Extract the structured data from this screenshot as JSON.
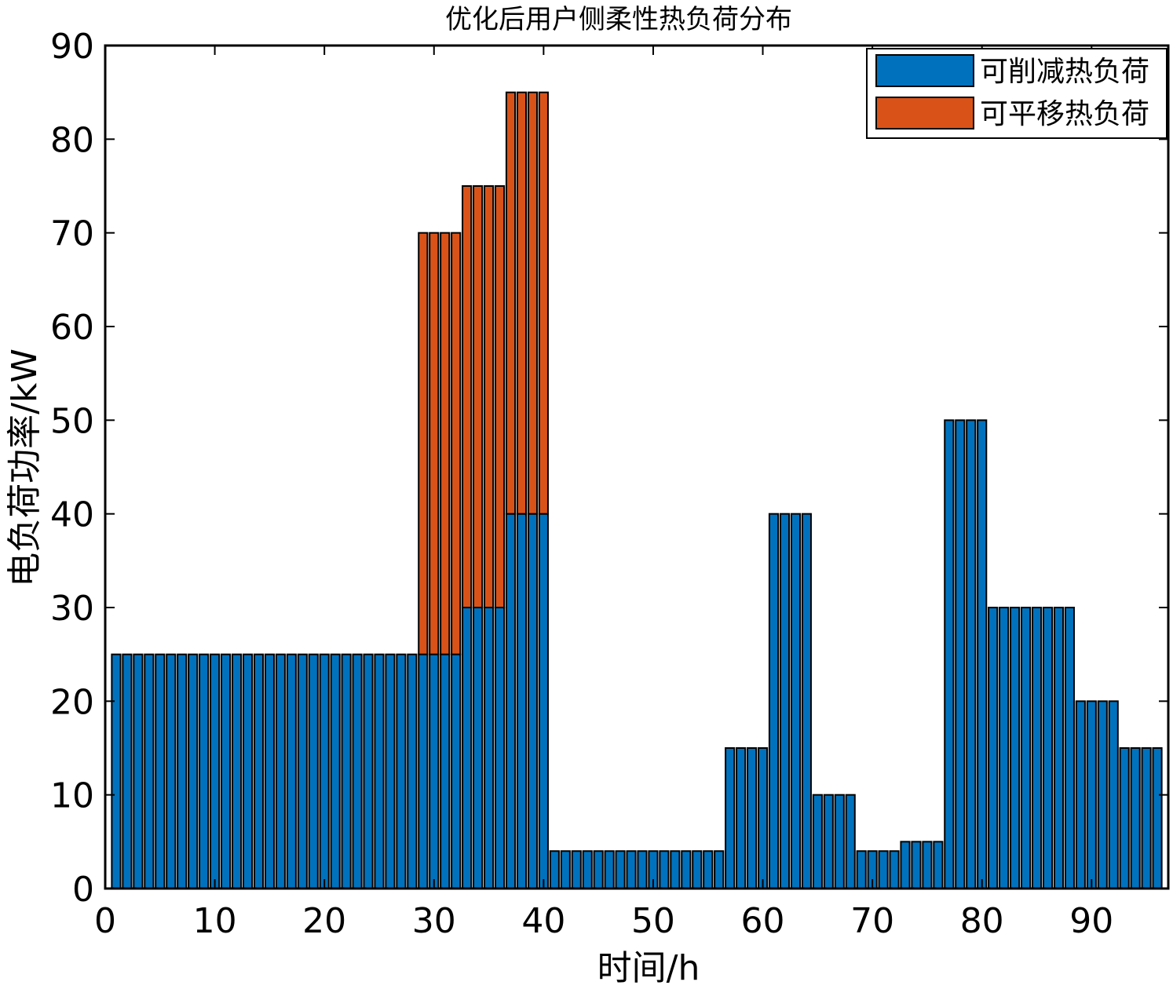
{
  "chart_data": {
    "type": "bar",
    "stacked": true,
    "title": "优化后用户侧柔性热负荷分布",
    "xlabel": "时间/h",
    "ylabel": "电负荷功率/kW",
    "xlim": [
      0,
      97
    ],
    "ylim": [
      0,
      90
    ],
    "xticks": [
      0,
      10,
      20,
      30,
      40,
      50,
      60,
      70,
      80,
      90
    ],
    "yticks": [
      0,
      10,
      20,
      30,
      40,
      50,
      60,
      70,
      80,
      90
    ],
    "legend_position": "top-right",
    "grid": false,
    "x": [
      1,
      2,
      3,
      4,
      5,
      6,
      7,
      8,
      9,
      10,
      11,
      12,
      13,
      14,
      15,
      16,
      17,
      18,
      19,
      20,
      21,
      22,
      23,
      24,
      25,
      26,
      27,
      28,
      29,
      30,
      31,
      32,
      33,
      34,
      35,
      36,
      37,
      38,
      39,
      40,
      41,
      42,
      43,
      44,
      45,
      46,
      47,
      48,
      49,
      50,
      51,
      52,
      53,
      54,
      55,
      56,
      57,
      58,
      59,
      60,
      61,
      62,
      63,
      64,
      65,
      66,
      67,
      68,
      69,
      70,
      71,
      72,
      73,
      74,
      75,
      76,
      77,
      78,
      79,
      80,
      81,
      82,
      83,
      84,
      85,
      86,
      87,
      88,
      89,
      90,
      91,
      92,
      93,
      94,
      95,
      96
    ],
    "series": [
      {
        "name": "可削减热负荷",
        "color": "#0072BD",
        "values": [
          25,
          25,
          25,
          25,
          25,
          25,
          25,
          25,
          25,
          25,
          25,
          25,
          25,
          25,
          25,
          25,
          25,
          25,
          25,
          25,
          25,
          25,
          25,
          25,
          25,
          25,
          25,
          25,
          25,
          25,
          25,
          25,
          30,
          30,
          30,
          30,
          40,
          40,
          40,
          40,
          4,
          4,
          4,
          4,
          4,
          4,
          4,
          4,
          4,
          4,
          4,
          4,
          4,
          4,
          4,
          4,
          15,
          15,
          15,
          15,
          40,
          40,
          40,
          40,
          10,
          10,
          10,
          10,
          4,
          4,
          4,
          4,
          5,
          5,
          5,
          5,
          50,
          50,
          50,
          50,
          30,
          30,
          30,
          30,
          30,
          30,
          30,
          30,
          20,
          20,
          20,
          20,
          15,
          15,
          15,
          15
        ]
      },
      {
        "name": "可平移热负荷",
        "color": "#D95319",
        "values": [
          0,
          0,
          0,
          0,
          0,
          0,
          0,
          0,
          0,
          0,
          0,
          0,
          0,
          0,
          0,
          0,
          0,
          0,
          0,
          0,
          0,
          0,
          0,
          0,
          0,
          0,
          0,
          0,
          45,
          45,
          45,
          45,
          45,
          45,
          45,
          45,
          45,
          45,
          45,
          45,
          0,
          0,
          0,
          0,
          0,
          0,
          0,
          0,
          0,
          0,
          0,
          0,
          0,
          0,
          0,
          0,
          0,
          0,
          0,
          0,
          0,
          0,
          0,
          0,
          0,
          0,
          0,
          0,
          0,
          0,
          0,
          0,
          0,
          0,
          0,
          0,
          0,
          0,
          0,
          0,
          0,
          0,
          0,
          0,
          0,
          0,
          0,
          0,
          0,
          0,
          0,
          0,
          0,
          0,
          0,
          0
        ]
      }
    ]
  }
}
